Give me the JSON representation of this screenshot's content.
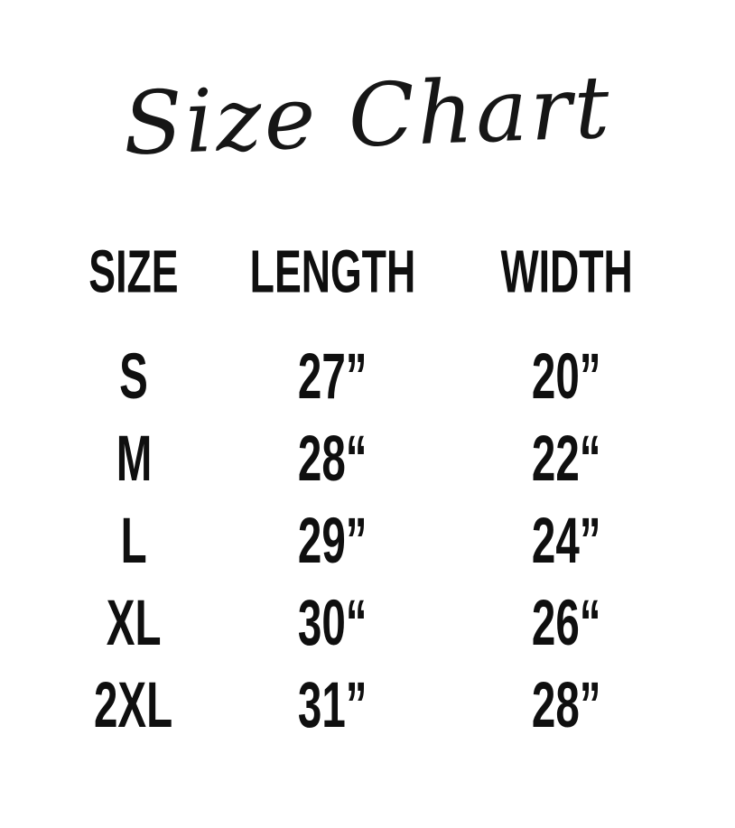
{
  "colors": {
    "background": "#ffffff",
    "text": "#0f0f0f"
  },
  "chart_data": {
    "type": "table",
    "title": "Size Chart",
    "columns": [
      "SIZE",
      "LENGTH",
      "WIDTH"
    ],
    "rows": [
      [
        "S",
        "27”",
        "20”"
      ],
      [
        "M",
        "28“",
        "22“"
      ],
      [
        "L",
        "29”",
        "24”"
      ],
      [
        "XL",
        "30“",
        "26“"
      ],
      [
        "2XL",
        "31”",
        "28”"
      ]
    ]
  }
}
